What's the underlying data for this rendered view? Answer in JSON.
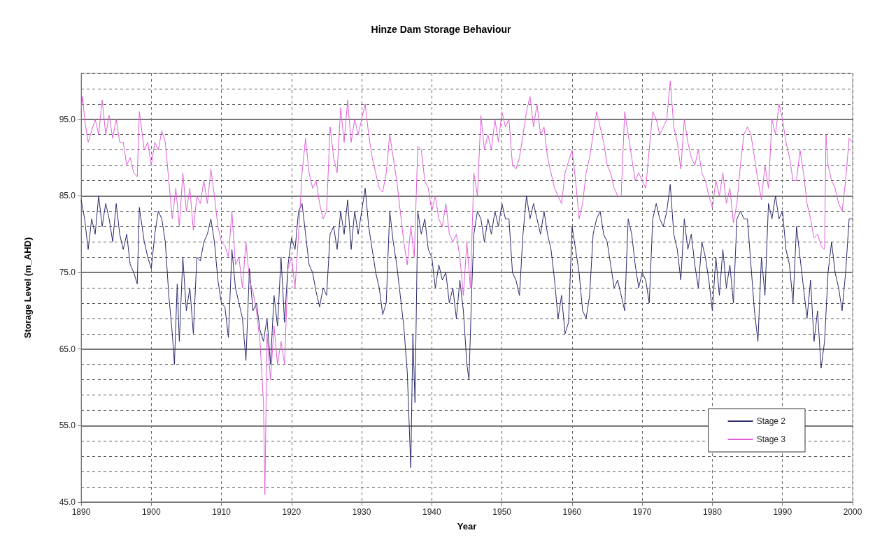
{
  "chart_data": {
    "type": "line",
    "title": "Hinze Dam Storage Behaviour",
    "xlabel": "Year",
    "ylabel": "Storage Level (m_AHD)",
    "xlim": [
      1890,
      2000
    ],
    "xticks": [
      1890,
      1900,
      1910,
      1920,
      1930,
      1940,
      1950,
      1960,
      1970,
      1980,
      1990,
      2000
    ],
    "ylim": [
      45,
      101
    ],
    "yticks": [
      {
        "value": 45,
        "label": "45.0"
      },
      {
        "value": 55,
        "label": "55.0"
      },
      {
        "value": 65,
        "label": "65.0"
      },
      {
        "value": 75,
        "label": "75.0"
      },
      {
        "value": 85,
        "label": "85.0"
      },
      {
        "value": 95,
        "label": "95.0"
      }
    ],
    "grid": true,
    "legend": "bottom right",
    "marker": "none",
    "line_style": "solid",
    "series": [
      {
        "name": "Stage 2",
        "color": "#2b2a6e",
        "x": [
          1890,
          1890.5,
          1891,
          1891.5,
          1892,
          1892.5,
          1893,
          1893.5,
          1894,
          1894.5,
          1895,
          1895.5,
          1896,
          1896.5,
          1897,
          1897.5,
          1898,
          1898.3,
          1899,
          1899.5,
          1900,
          1900.5,
          1901,
          1901.5,
          1902,
          1902.5,
          1903,
          1903.3,
          1903.7,
          1904,
          1904.5,
          1905,
          1905.5,
          1906,
          1906.5,
          1907,
          1907.5,
          1908,
          1908.5,
          1909,
          1909.5,
          1910,
          1910.5,
          1911,
          1911.5,
          1912,
          1912.5,
          1913,
          1913.5,
          1914,
          1914.5,
          1915,
          1915.5,
          1916,
          1916.5,
          1917,
          1917.5,
          1918,
          1918.5,
          1919,
          1919.5,
          1920,
          1920.5,
          1921,
          1921.5,
          1922,
          1922.5,
          1923,
          1923.5,
          1924,
          1924.5,
          1925,
          1925.5,
          1926,
          1926.5,
          1927,
          1927.5,
          1928,
          1928.5,
          1929,
          1929.5,
          1930,
          1930.5,
          1931,
          1931.5,
          1932,
          1932.5,
          1933,
          1933.5,
          1934,
          1934.5,
          1935,
          1935.5,
          1936,
          1936.5,
          1937,
          1937.3,
          1937.6,
          1938,
          1938.5,
          1939,
          1939.5,
          1940,
          1940.5,
          1941,
          1941.5,
          1942,
          1942.5,
          1943,
          1943.5,
          1944,
          1944.5,
          1945,
          1945.3,
          1945.7,
          1946,
          1946.5,
          1947,
          1947.5,
          1948,
          1948.5,
          1949,
          1949.5,
          1950,
          1950.5,
          1951,
          1951.5,
          1952,
          1952.5,
          1953,
          1953.5,
          1954,
          1954.5,
          1955,
          1955.5,
          1956,
          1956.5,
          1957,
          1957.5,
          1958,
          1958.5,
          1959,
          1959.5,
          1960,
          1960.5,
          1961,
          1961.5,
          1962,
          1962.5,
          1963,
          1963.5,
          1964,
          1964.5,
          1965,
          1965.5,
          1966,
          1966.5,
          1967,
          1967.5,
          1968,
          1968.5,
          1969,
          1969.5,
          1970,
          1970.5,
          1971,
          1971.5,
          1972,
          1972.5,
          1973,
          1973.5,
          1974,
          1974.5,
          1975,
          1975.5,
          1976,
          1976.5,
          1977,
          1977.5,
          1978,
          1978.5,
          1979,
          1979.5,
          1980,
          1980.5,
          1981,
          1981.5,
          1982,
          1982.5,
          1983,
          1983.5,
          1984,
          1984.5,
          1985,
          1985.5,
          1986,
          1986.5,
          1987,
          1987.5,
          1988,
          1988.5,
          1989,
          1989.5,
          1990,
          1990.5,
          1991,
          1991.5,
          1992,
          1992.5,
          1993,
          1993.5,
          1994,
          1994.5,
          1995,
          1995.5,
          1996,
          1996.5,
          1997,
          1997.5,
          1998,
          1998.5,
          1999,
          1999.5,
          2000
        ],
        "values": [
          84.5,
          82,
          78,
          82,
          80,
          85,
          81,
          84,
          82,
          79,
          84,
          80,
          78,
          80,
          76,
          75,
          73.5,
          83.5,
          79,
          77,
          75.5,
          80,
          83,
          82,
          79,
          72,
          67,
          63,
          73.5,
          66,
          77,
          70,
          73,
          67,
          77,
          76.5,
          79,
          80,
          82,
          79,
          74,
          71,
          70.5,
          66.5,
          78,
          73,
          71,
          69,
          63.5,
          75.5,
          70,
          71,
          67.5,
          66,
          69,
          63,
          72,
          68,
          77,
          68.5,
          76,
          79.5,
          78,
          83,
          84,
          80,
          76,
          75,
          72.5,
          70.5,
          73,
          72,
          80,
          81,
          78,
          83,
          80,
          84.5,
          78,
          83,
          80,
          83,
          86,
          81,
          78,
          75,
          73,
          69.5,
          71,
          83,
          79,
          76,
          72,
          68,
          62,
          49.5,
          67,
          58,
          83,
          80,
          82,
          78,
          77,
          73,
          76,
          74,
          75,
          71,
          73,
          69,
          74,
          70,
          63,
          61,
          73,
          80,
          83,
          82,
          79,
          82,
          80,
          83,
          81,
          84,
          82,
          82,
          75,
          74,
          72,
          80,
          85,
          82,
          84,
          82,
          80,
          83,
          80,
          78,
          74,
          69,
          72,
          67,
          68.5,
          81,
          78,
          75,
          70,
          69,
          72,
          80,
          82,
          83,
          80,
          79,
          76,
          73,
          74,
          72,
          70,
          82,
          80,
          76,
          73,
          75,
          74,
          71,
          82,
          84,
          82,
          81,
          83,
          86.5,
          80,
          78,
          74,
          82,
          78,
          80,
          76,
          73,
          79,
          77,
          74,
          70,
          77,
          72,
          78,
          73,
          76,
          71,
          82,
          83,
          82,
          82,
          76,
          70,
          66,
          77,
          72,
          84,
          82,
          85,
          82,
          83,
          78,
          76,
          71,
          81,
          77,
          73,
          69,
          74,
          66,
          70,
          62.5,
          66,
          75,
          79,
          75,
          73,
          70,
          75,
          82,
          82
        ]
      },
      {
        "name": "Stage 3",
        "color": "#e05fd8",
        "x": [
          1890,
          1890.2,
          1890.5,
          1891,
          1892,
          1892.5,
          1893,
          1893.5,
          1894,
          1894.5,
          1895,
          1895.5,
          1896,
          1896.5,
          1897,
          1897.5,
          1898,
          1898.3,
          1899,
          1899.5,
          1900,
          1900.5,
          1901,
          1901.5,
          1902,
          1902.5,
          1903,
          1903.5,
          1904,
          1904.5,
          1905,
          1905.5,
          1906,
          1906.5,
          1907,
          1907.5,
          1908,
          1908.5,
          1909,
          1909.5,
          1910,
          1910.5,
          1911,
          1911.5,
          1912,
          1912.5,
          1913,
          1913.5,
          1914,
          1914.5,
          1915,
          1915.5,
          1916,
          1916.2,
          1916.5,
          1917,
          1917.5,
          1918,
          1918.5,
          1919,
          1919.5,
          1920,
          1920.5,
          1921,
          1921.5,
          1922,
          1922.5,
          1923,
          1923.5,
          1924,
          1924.5,
          1925,
          1925.5,
          1926,
          1926.5,
          1927,
          1927.5,
          1928,
          1928.5,
          1929,
          1929.5,
          1930,
          1930.5,
          1931,
          1931.5,
          1932,
          1932.5,
          1933,
          1933.5,
          1934,
          1934.5,
          1935,
          1935.5,
          1936,
          1936.5,
          1937,
          1937.5,
          1938,
          1938.5,
          1939,
          1939.5,
          1940,
          1940.5,
          1941,
          1941.5,
          1942,
          1942.5,
          1943,
          1943.5,
          1944,
          1944.5,
          1945,
          1945.5,
          1946,
          1946.5,
          1947,
          1947.5,
          1948,
          1948.5,
          1949,
          1949.5,
          1950,
          1950.5,
          1951,
          1951.5,
          1952,
          1952.5,
          1953,
          1953.5,
          1954,
          1954.5,
          1955,
          1955.5,
          1956,
          1956.5,
          1957,
          1957.5,
          1958,
          1958.5,
          1959,
          1960,
          1960.5,
          1961,
          1961.5,
          1962,
          1962.5,
          1963,
          1963.5,
          1964,
          1964.5,
          1965,
          1965.5,
          1966,
          1966.5,
          1967,
          1967.5,
          1968,
          1968.5,
          1969,
          1969.5,
          1970,
          1970.5,
          1971,
          1971.5,
          1972,
          1972.5,
          1973,
          1973.5,
          1974,
          1974.5,
          1975,
          1975.5,
          1976,
          1976.5,
          1977,
          1977.5,
          1978,
          1978.5,
          1979,
          1979.5,
          1980,
          1980.5,
          1981,
          1981.5,
          1982,
          1982.5,
          1983,
          1983.5,
          1984,
          1984.5,
          1985,
          1985.5,
          1986,
          1986.5,
          1987,
          1987.5,
          1988,
          1988.5,
          1989,
          1989.5,
          1990,
          1990.5,
          1991,
          1991.5,
          1992,
          1992.5,
          1993,
          1993.5,
          1994,
          1994.5,
          1995,
          1995.5,
          1996,
          1996.2,
          1996.5,
          1997,
          1997.5,
          1998,
          1998.5,
          1999,
          1999.5,
          2000
        ],
        "values": [
          96,
          98,
          95,
          92,
          95,
          93,
          97.5,
          93,
          95.5,
          92.5,
          95,
          92,
          92,
          89,
          90,
          88,
          87.5,
          96,
          91,
          92,
          89,
          92,
          91,
          93.5,
          92,
          87,
          82,
          86,
          81,
          88,
          83,
          86,
          80.5,
          85,
          84,
          87,
          84,
          88.5,
          85,
          81,
          79,
          78.5,
          77,
          83,
          76,
          77,
          73,
          79,
          74,
          72.5,
          70,
          66,
          58,
          46,
          67,
          61,
          68,
          63,
          66,
          63,
          75.5,
          77,
          73,
          80,
          88,
          92.5,
          88,
          86,
          87,
          84,
          82,
          83,
          94,
          90,
          88,
          96.5,
          92,
          97.5,
          92,
          95,
          93,
          95,
          97,
          93,
          90,
          88,
          86,
          85.5,
          88,
          93,
          90,
          87,
          83,
          79,
          76,
          81,
          77,
          91.5,
          91,
          87,
          86,
          83,
          85,
          82,
          81,
          84,
          80,
          79,
          80,
          77,
          72,
          79,
          73,
          88,
          85,
          95.5,
          91,
          93,
          91,
          95,
          92,
          96,
          94,
          95,
          89,
          88.5,
          90,
          93,
          96,
          98,
          94,
          97,
          93,
          94,
          90,
          88,
          86,
          85,
          84,
          88,
          91,
          87,
          82,
          84,
          88,
          90,
          93,
          96,
          94,
          92,
          89,
          88,
          86,
          85,
          85,
          96,
          93,
          90,
          87,
          88,
          87,
          86,
          91,
          96,
          95,
          93,
          94,
          95,
          100,
          94,
          92,
          88.5,
          95,
          92,
          90,
          89,
          91,
          88,
          87,
          85,
          83.5,
          87,
          85,
          88,
          84,
          86,
          81.5,
          84,
          89,
          93,
          94,
          93,
          90,
          87,
          84.5,
          89,
          86,
          95,
          93,
          97,
          95,
          92,
          90,
          87,
          87,
          91,
          88,
          84,
          82,
          79.5,
          80,
          78.5,
          78,
          93,
          89,
          87,
          86,
          84,
          83,
          87,
          92.5,
          92
        ]
      }
    ]
  }
}
